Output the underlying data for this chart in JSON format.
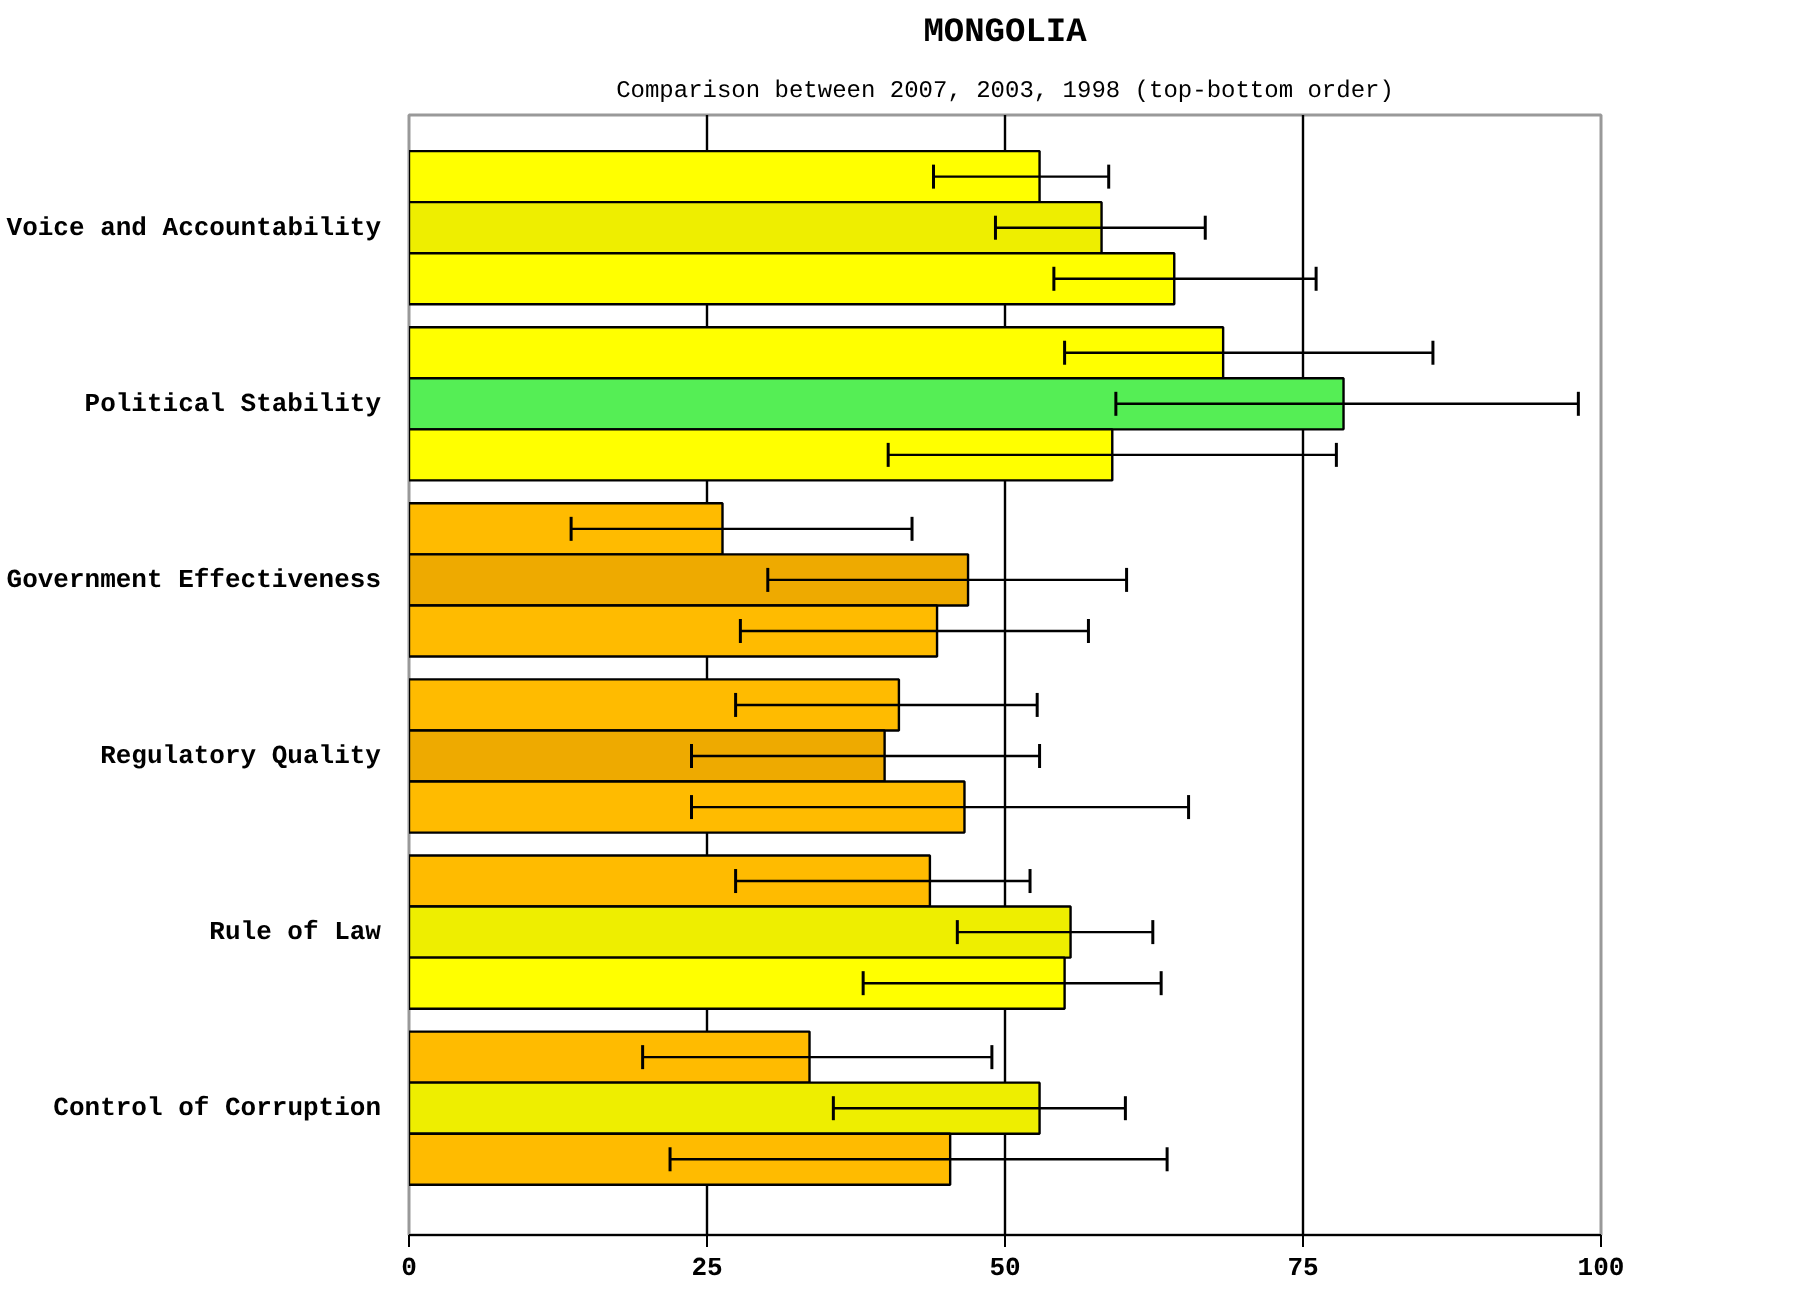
{
  "chart_data": {
    "type": "bar",
    "orientation": "horizontal",
    "title": "MONGOLIA",
    "subtitle": "Comparison between 2007, 2003, 1998 (top-bottom order)",
    "categories": [
      "Voice and Accountability",
      "Political Stability",
      "Government Effectiveness",
      "Regulatory Quality",
      "Rule of Law",
      "Control of Corruption"
    ],
    "series": [
      {
        "colors": [
          "#ffff00",
          "#ffff00",
          "#ffbb00",
          "#ffbb00",
          "#ffbb00",
          "#ffbb00"
        ],
        "values": [
          52.9,
          68.3,
          26.3,
          41.1,
          43.7,
          33.6
        ],
        "errors": [
          [
            44.0,
            58.7
          ],
          [
            55.0,
            85.9
          ],
          [
            13.6,
            42.2
          ],
          [
            27.4,
            52.7
          ],
          [
            27.4,
            52.1
          ],
          [
            19.6,
            48.9
          ]
        ]
      },
      {
        "colors": [
          "#eeee00",
          "#55ee55",
          "#eeaa00",
          "#eeaa00",
          "#eeee00",
          "#eeee00"
        ],
        "values": [
          58.1,
          78.4,
          46.9,
          39.9,
          55.5,
          52.9
        ],
        "errors": [
          [
            49.2,
            66.8
          ],
          [
            59.3,
            98.1
          ],
          [
            30.1,
            60.2
          ],
          [
            23.7,
            52.9
          ],
          [
            46.0,
            62.4
          ],
          [
            35.6,
            60.1
          ]
        ]
      },
      {
        "colors": [
          "#ffff00",
          "#ffff00",
          "#ffbb00",
          "#ffbb00",
          "#ffff00",
          "#ffbb00"
        ],
        "values": [
          64.2,
          59.0,
          44.3,
          46.6,
          55.0,
          45.4
        ],
        "errors": [
          [
            54.1,
            76.1
          ],
          [
            40.2,
            77.8
          ],
          [
            27.8,
            57.0
          ],
          [
            23.7,
            65.4
          ],
          [
            38.1,
            63.1
          ],
          [
            21.9,
            63.6
          ]
        ]
      }
    ],
    "xlim": [
      0,
      100
    ],
    "xticks": [
      0,
      25,
      50,
      75,
      100
    ],
    "grid": "x"
  }
}
